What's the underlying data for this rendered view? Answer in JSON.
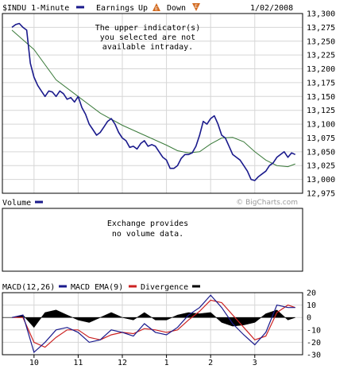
{
  "header": {
    "symbol_label": "$INDU 1-Minute",
    "earnings_label": "Earnings",
    "up_label": "Up",
    "down_label": "Down",
    "date": "1/02/2008"
  },
  "notes": {
    "intraday_line1": "The upper indicator(s)",
    "intraday_line2": "you selected are not",
    "intraday_line3": "available intraday.",
    "volume_line1": "Exchange provides",
    "volume_line2": "no volume data."
  },
  "volume_panel": {
    "title": "Volume"
  },
  "watermark": "© BigCharts.com",
  "macd_legend": {
    "macd": "MACD(12,26)",
    "ema": "MACD EMA(9)",
    "divergence": "Divergence"
  },
  "colors": {
    "price": "#1a1a8c",
    "moving_average": "#3a7a3a",
    "macd": "#1a1a8c",
    "ema": "#cc2222",
    "divergence": "#000000",
    "grid": "#d6d6d6",
    "earnings_up": "#d2691e",
    "earnings_down": "#d2691e"
  },
  "chart_data": [
    {
      "type": "line",
      "panel": "price",
      "title": "$INDU 1-Minute",
      "x_ticks": [
        "10",
        "11",
        "12",
        "1",
        "2",
        "3"
      ],
      "ylim": [
        12975,
        13300
      ],
      "y_ticks": [
        "13,300",
        "13,275",
        "13,250",
        "13,225",
        "13,200",
        "13,175",
        "13,150",
        "13,125",
        "13,100",
        "13,075",
        "13,050",
        "13,025",
        "13,000",
        "12,975"
      ],
      "y_tick_values": [
        13300,
        13275,
        13250,
        13225,
        13200,
        13175,
        13150,
        13125,
        13100,
        13075,
        13050,
        13025,
        13000,
        12975
      ],
      "grid": true,
      "series": [
        {
          "role": "price",
          "x": [
            "09:30",
            "09:35",
            "09:40",
            "09:45",
            "09:50",
            "09:55",
            "10:00",
            "10:05",
            "10:10",
            "10:15",
            "10:20",
            "10:25",
            "10:30",
            "10:35",
            "10:40",
            "10:45",
            "10:50",
            "10:55",
            "11:00",
            "11:05",
            "11:10",
            "11:15",
            "11:20",
            "11:25",
            "11:30",
            "11:35",
            "11:40",
            "11:45",
            "11:50",
            "11:55",
            "12:00",
            "12:05",
            "12:10",
            "12:15",
            "12:20",
            "12:25",
            "12:30",
            "12:35",
            "12:40",
            "12:45",
            "12:50",
            "12:55",
            "13:00",
            "13:05",
            "13:10",
            "13:15",
            "13:20",
            "13:25",
            "13:30",
            "13:35",
            "13:40",
            "13:45",
            "13:50",
            "13:55",
            "14:00",
            "14:05",
            "14:10",
            "14:15",
            "14:20",
            "14:25",
            "14:30",
            "14:35",
            "14:40",
            "14:45",
            "14:50",
            "14:55",
            "15:00",
            "15:05",
            "15:10",
            "15:15",
            "15:20",
            "15:25",
            "15:30",
            "15:35",
            "15:40",
            "15:45",
            "15:50",
            "15:55"
          ],
          "values": [
            13275,
            13280,
            13282,
            13275,
            13270,
            13210,
            13185,
            13170,
            13160,
            13150,
            13160,
            13158,
            13150,
            13160,
            13155,
            13145,
            13148,
            13140,
            13150,
            13130,
            13118,
            13100,
            13090,
            13080,
            13085,
            13095,
            13105,
            13110,
            13100,
            13085,
            13075,
            13070,
            13058,
            13060,
            13055,
            13065,
            13070,
            13060,
            13063,
            13060,
            13050,
            13040,
            13035,
            13020,
            13020,
            13025,
            13038,
            13045,
            13045,
            13048,
            13060,
            13080,
            13105,
            13100,
            13110,
            13115,
            13100,
            13080,
            13075,
            13060,
            13045,
            13040,
            13035,
            13025,
            13015,
            13000,
            12998,
            13005,
            13010,
            13015,
            13025,
            13030,
            13040,
            13045,
            13050,
            13040,
            13048,
            13045
          ]
        },
        {
          "role": "moving_average",
          "x": [
            "09:30",
            "10:00",
            "10:30",
            "11:00",
            "11:30",
            "12:00",
            "12:30",
            "13:00",
            "13:15",
            "13:30",
            "13:45",
            "14:00",
            "14:15",
            "14:30",
            "14:45",
            "15:00",
            "15:15",
            "15:30",
            "15:45",
            "15:55"
          ],
          "values": [
            13270,
            13235,
            13180,
            13150,
            13120,
            13098,
            13080,
            13062,
            13052,
            13048,
            13050,
            13064,
            13075,
            13076,
            13068,
            13050,
            13035,
            13025,
            13023,
            13028
          ]
        }
      ]
    },
    {
      "type": "line",
      "panel": "macd",
      "title": "MACD(12,26)",
      "ylim": [
        -30,
        20
      ],
      "y_ticks": [
        "20",
        "10",
        "0",
        "-10",
        "-20",
        "-30"
      ],
      "y_tick_values": [
        20,
        10,
        0,
        -10,
        -20,
        -30
      ],
      "x_ticks": [
        "10",
        "11",
        "12",
        "1",
        "2",
        "3"
      ],
      "grid": true,
      "x": [
        "09:30",
        "09:45",
        "10:00",
        "10:15",
        "10:30",
        "10:45",
        "11:00",
        "11:15",
        "11:30",
        "11:45",
        "12:00",
        "12:15",
        "12:30",
        "12:45",
        "13:00",
        "13:15",
        "13:30",
        "13:45",
        "14:00",
        "14:15",
        "14:30",
        "14:45",
        "15:00",
        "15:15",
        "15:30",
        "15:45",
        "15:55"
      ],
      "series": [
        {
          "name": "MACD(12,26)",
          "values": [
            0,
            2,
            -28,
            -20,
            -10,
            -8,
            -12,
            -20,
            -18,
            -10,
            -12,
            -15,
            -5,
            -12,
            -14,
            -8,
            2,
            8,
            18,
            8,
            -5,
            -14,
            -22,
            -12,
            10,
            8,
            8
          ]
        },
        {
          "name": "MACD EMA(9)",
          "values": [
            0,
            0,
            -20,
            -24,
            -16,
            -10,
            -10,
            -16,
            -18,
            -14,
            -12,
            -13,
            -9,
            -10,
            -12,
            -10,
            -2,
            5,
            14,
            12,
            2,
            -8,
            -18,
            -15,
            4,
            10,
            8
          ]
        },
        {
          "name": "Divergence",
          "values": [
            0,
            2,
            -8,
            4,
            6,
            2,
            -2,
            -4,
            0,
            4,
            0,
            -2,
            4,
            -2,
            -2,
            2,
            4,
            3,
            4,
            -4,
            -7,
            -6,
            -4,
            3,
            6,
            -2,
            0
          ]
        }
      ]
    }
  ]
}
